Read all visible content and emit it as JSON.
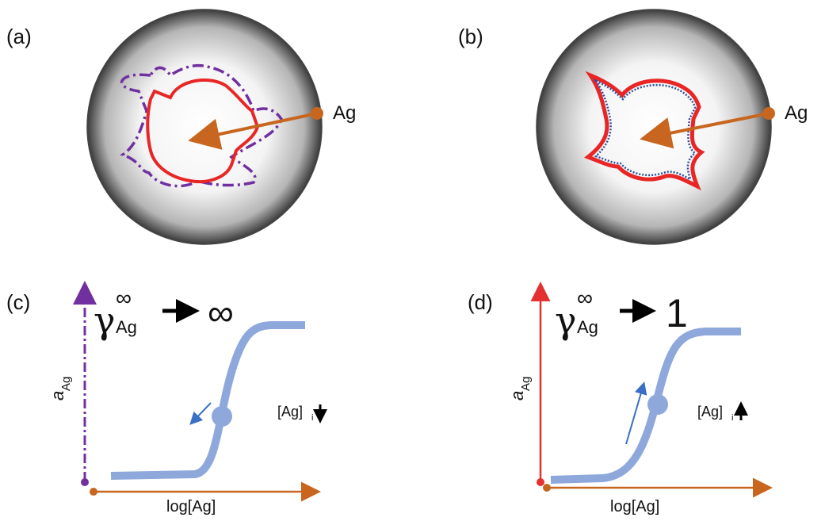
{
  "panels": [
    {
      "label": "(a)",
      "ag_label": "Ag"
    },
    {
      "label": "(b)",
      "ag_label": "Ag"
    },
    {
      "label": "(c)",
      "gamma": "γ",
      "gamma_sup": "∞",
      "gamma_sub": "Ag",
      "limit": "∞",
      "y_axis": "a",
      "y_axis_sub": "Ag",
      "x_axis": "log[Ag]",
      "conc": "[Ag]",
      "conc_sub": "i"
    },
    {
      "label": "(d)",
      "gamma": "γ",
      "gamma_sup": "∞",
      "gamma_sub": "Ag",
      "limit": "1",
      "y_axis": "a",
      "y_axis_sub": "Ag",
      "x_axis": "log[Ag]",
      "conc": "[Ag]",
      "conc_sub": "i"
    }
  ]
}
